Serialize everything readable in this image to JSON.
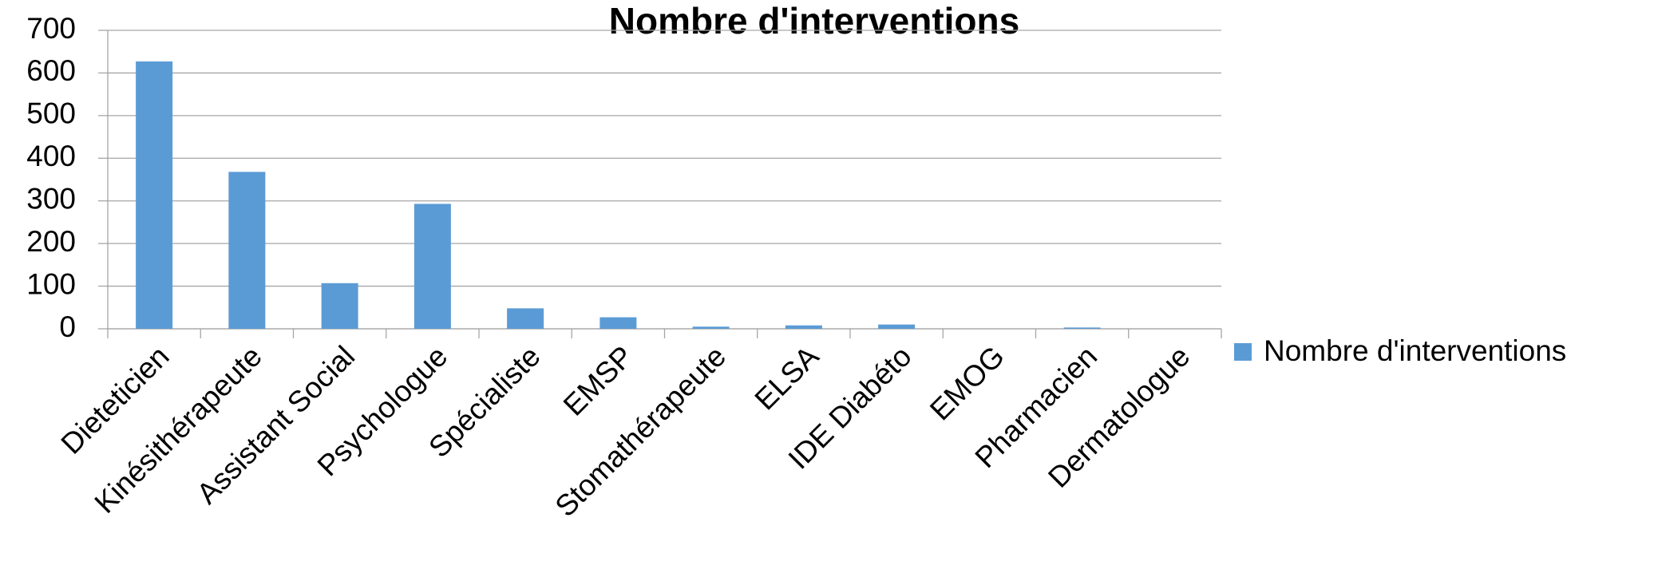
{
  "chart_data": {
    "type": "bar",
    "title": "Nombre d'interventions",
    "categories": [
      "Dieteticien",
      "Kinésithérapeute",
      "Assistant Social",
      "Psychologue",
      "Spécialiste",
      "EMSP",
      "Stomathérapeute",
      "ELSA",
      "IDE Diabéto",
      "EMOG",
      "Pharmacien",
      "Dermatologue"
    ],
    "series": [
      {
        "name": "Nombre d'interventions",
        "color": "#5b9bd5",
        "values": [
          627,
          368,
          107,
          293,
          48,
          27,
          5,
          8,
          10,
          0,
          3,
          0
        ]
      }
    ],
    "ylim": [
      0,
      700
    ],
    "yticks": [
      0,
      100,
      200,
      300,
      400,
      500,
      600,
      700
    ],
    "grid": true,
    "legend": "right"
  }
}
